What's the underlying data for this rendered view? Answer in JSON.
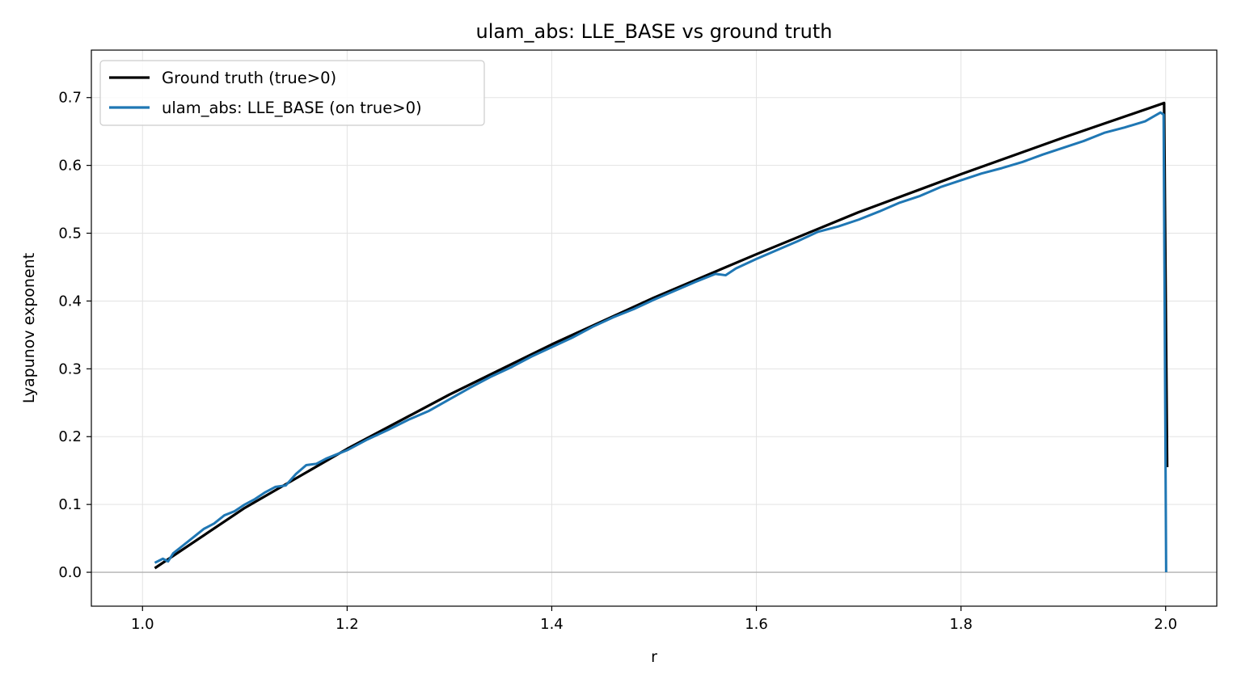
{
  "chart_data": {
    "type": "line",
    "title": "ulam_abs: LLE_BASE vs ground truth",
    "xlabel": "r",
    "ylabel": "Lyapunov exponent",
    "xlim": [
      0.95,
      2.05
    ],
    "ylim": [
      -0.05,
      0.77
    ],
    "xticks": [
      1.0,
      1.2,
      1.4,
      1.6,
      1.8,
      2.0
    ],
    "xtick_labels": [
      "1.0",
      "1.2",
      "1.4",
      "1.6",
      "1.8",
      "2.0"
    ],
    "yticks": [
      0.0,
      0.1,
      0.2,
      0.3,
      0.4,
      0.5,
      0.6,
      0.7
    ],
    "ytick_labels": [
      "0.0",
      "0.1",
      "0.2",
      "0.3",
      "0.4",
      "0.5",
      "0.6",
      "0.7"
    ],
    "grid": true,
    "legend": "upper-left",
    "reference_line_y": 0.0,
    "series": [
      {
        "name": "Ground truth (true>0)",
        "color": "#000000",
        "x": [
          1.012,
          1.1,
          1.2,
          1.3,
          1.4,
          1.5,
          1.6,
          1.7,
          1.8,
          1.9,
          1.9985,
          2.0015
        ],
        "y": [
          0.006,
          0.095,
          0.182,
          0.262,
          0.336,
          0.405,
          0.469,
          0.531,
          0.587,
          0.641,
          0.692,
          0.155
        ]
      },
      {
        "name": "ulam_abs: LLE_BASE (on true>0)",
        "color": "#1f77b4",
        "x": [
          1.012,
          1.02,
          1.025,
          1.03,
          1.04,
          1.05,
          1.06,
          1.07,
          1.08,
          1.09,
          1.1,
          1.11,
          1.12,
          1.13,
          1.14,
          1.15,
          1.16,
          1.17,
          1.18,
          1.19,
          1.2,
          1.22,
          1.24,
          1.26,
          1.28,
          1.3,
          1.32,
          1.34,
          1.36,
          1.38,
          1.4,
          1.42,
          1.44,
          1.46,
          1.48,
          1.5,
          1.52,
          1.54,
          1.56,
          1.57,
          1.58,
          1.6,
          1.62,
          1.64,
          1.66,
          1.68,
          1.7,
          1.72,
          1.74,
          1.76,
          1.78,
          1.8,
          1.82,
          1.84,
          1.86,
          1.88,
          1.9,
          1.92,
          1.94,
          1.96,
          1.98,
          1.995,
          1.998,
          2.0005
        ],
        "y": [
          0.014,
          0.02,
          0.016,
          0.028,
          0.04,
          0.052,
          0.064,
          0.072,
          0.084,
          0.09,
          0.1,
          0.108,
          0.118,
          0.126,
          0.128,
          0.145,
          0.158,
          0.16,
          0.168,
          0.174,
          0.18,
          0.196,
          0.21,
          0.225,
          0.238,
          0.255,
          0.272,
          0.288,
          0.302,
          0.318,
          0.332,
          0.346,
          0.362,
          0.376,
          0.388,
          0.402,
          0.415,
          0.428,
          0.44,
          0.438,
          0.448,
          0.462,
          0.475,
          0.488,
          0.502,
          0.51,
          0.52,
          0.532,
          0.545,
          0.555,
          0.568,
          0.578,
          0.588,
          0.596,
          0.605,
          0.616,
          0.626,
          0.636,
          0.648,
          0.656,
          0.665,
          0.678,
          0.675,
          0.0
        ]
      }
    ]
  }
}
